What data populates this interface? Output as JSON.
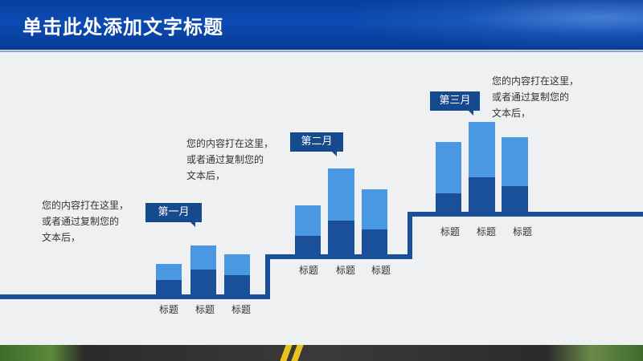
{
  "header": {
    "title": "单击此处添加文字标题"
  },
  "months": [
    {
      "label": "第一月",
      "note_lines": [
        "您的内容打在这里，",
        "或者通过复制您的",
        "文本后，"
      ]
    },
    {
      "label": "第二月",
      "note_lines": [
        "您的内容打在这里，",
        "或者通过复制您的",
        "文本后，"
      ]
    },
    {
      "label": "第三月",
      "note_lines": [
        "您的内容打在这里，",
        "或者通过复制您的",
        "文本后，"
      ]
    }
  ],
  "chart_data": {
    "type": "bar",
    "groups": [
      {
        "name": "第一月",
        "categories": [
          "标题",
          "标题",
          "标题"
        ]
      },
      {
        "name": "第二月",
        "categories": [
          "标题",
          "标题",
          "标题"
        ]
      },
      {
        "name": "第三月",
        "categories": [
          "标题",
          "标题",
          "标题"
        ]
      }
    ],
    "colors": {
      "light": "#4a97e2",
      "dark": "#1a4f9a",
      "step_line": "#1a4f9a"
    }
  }
}
